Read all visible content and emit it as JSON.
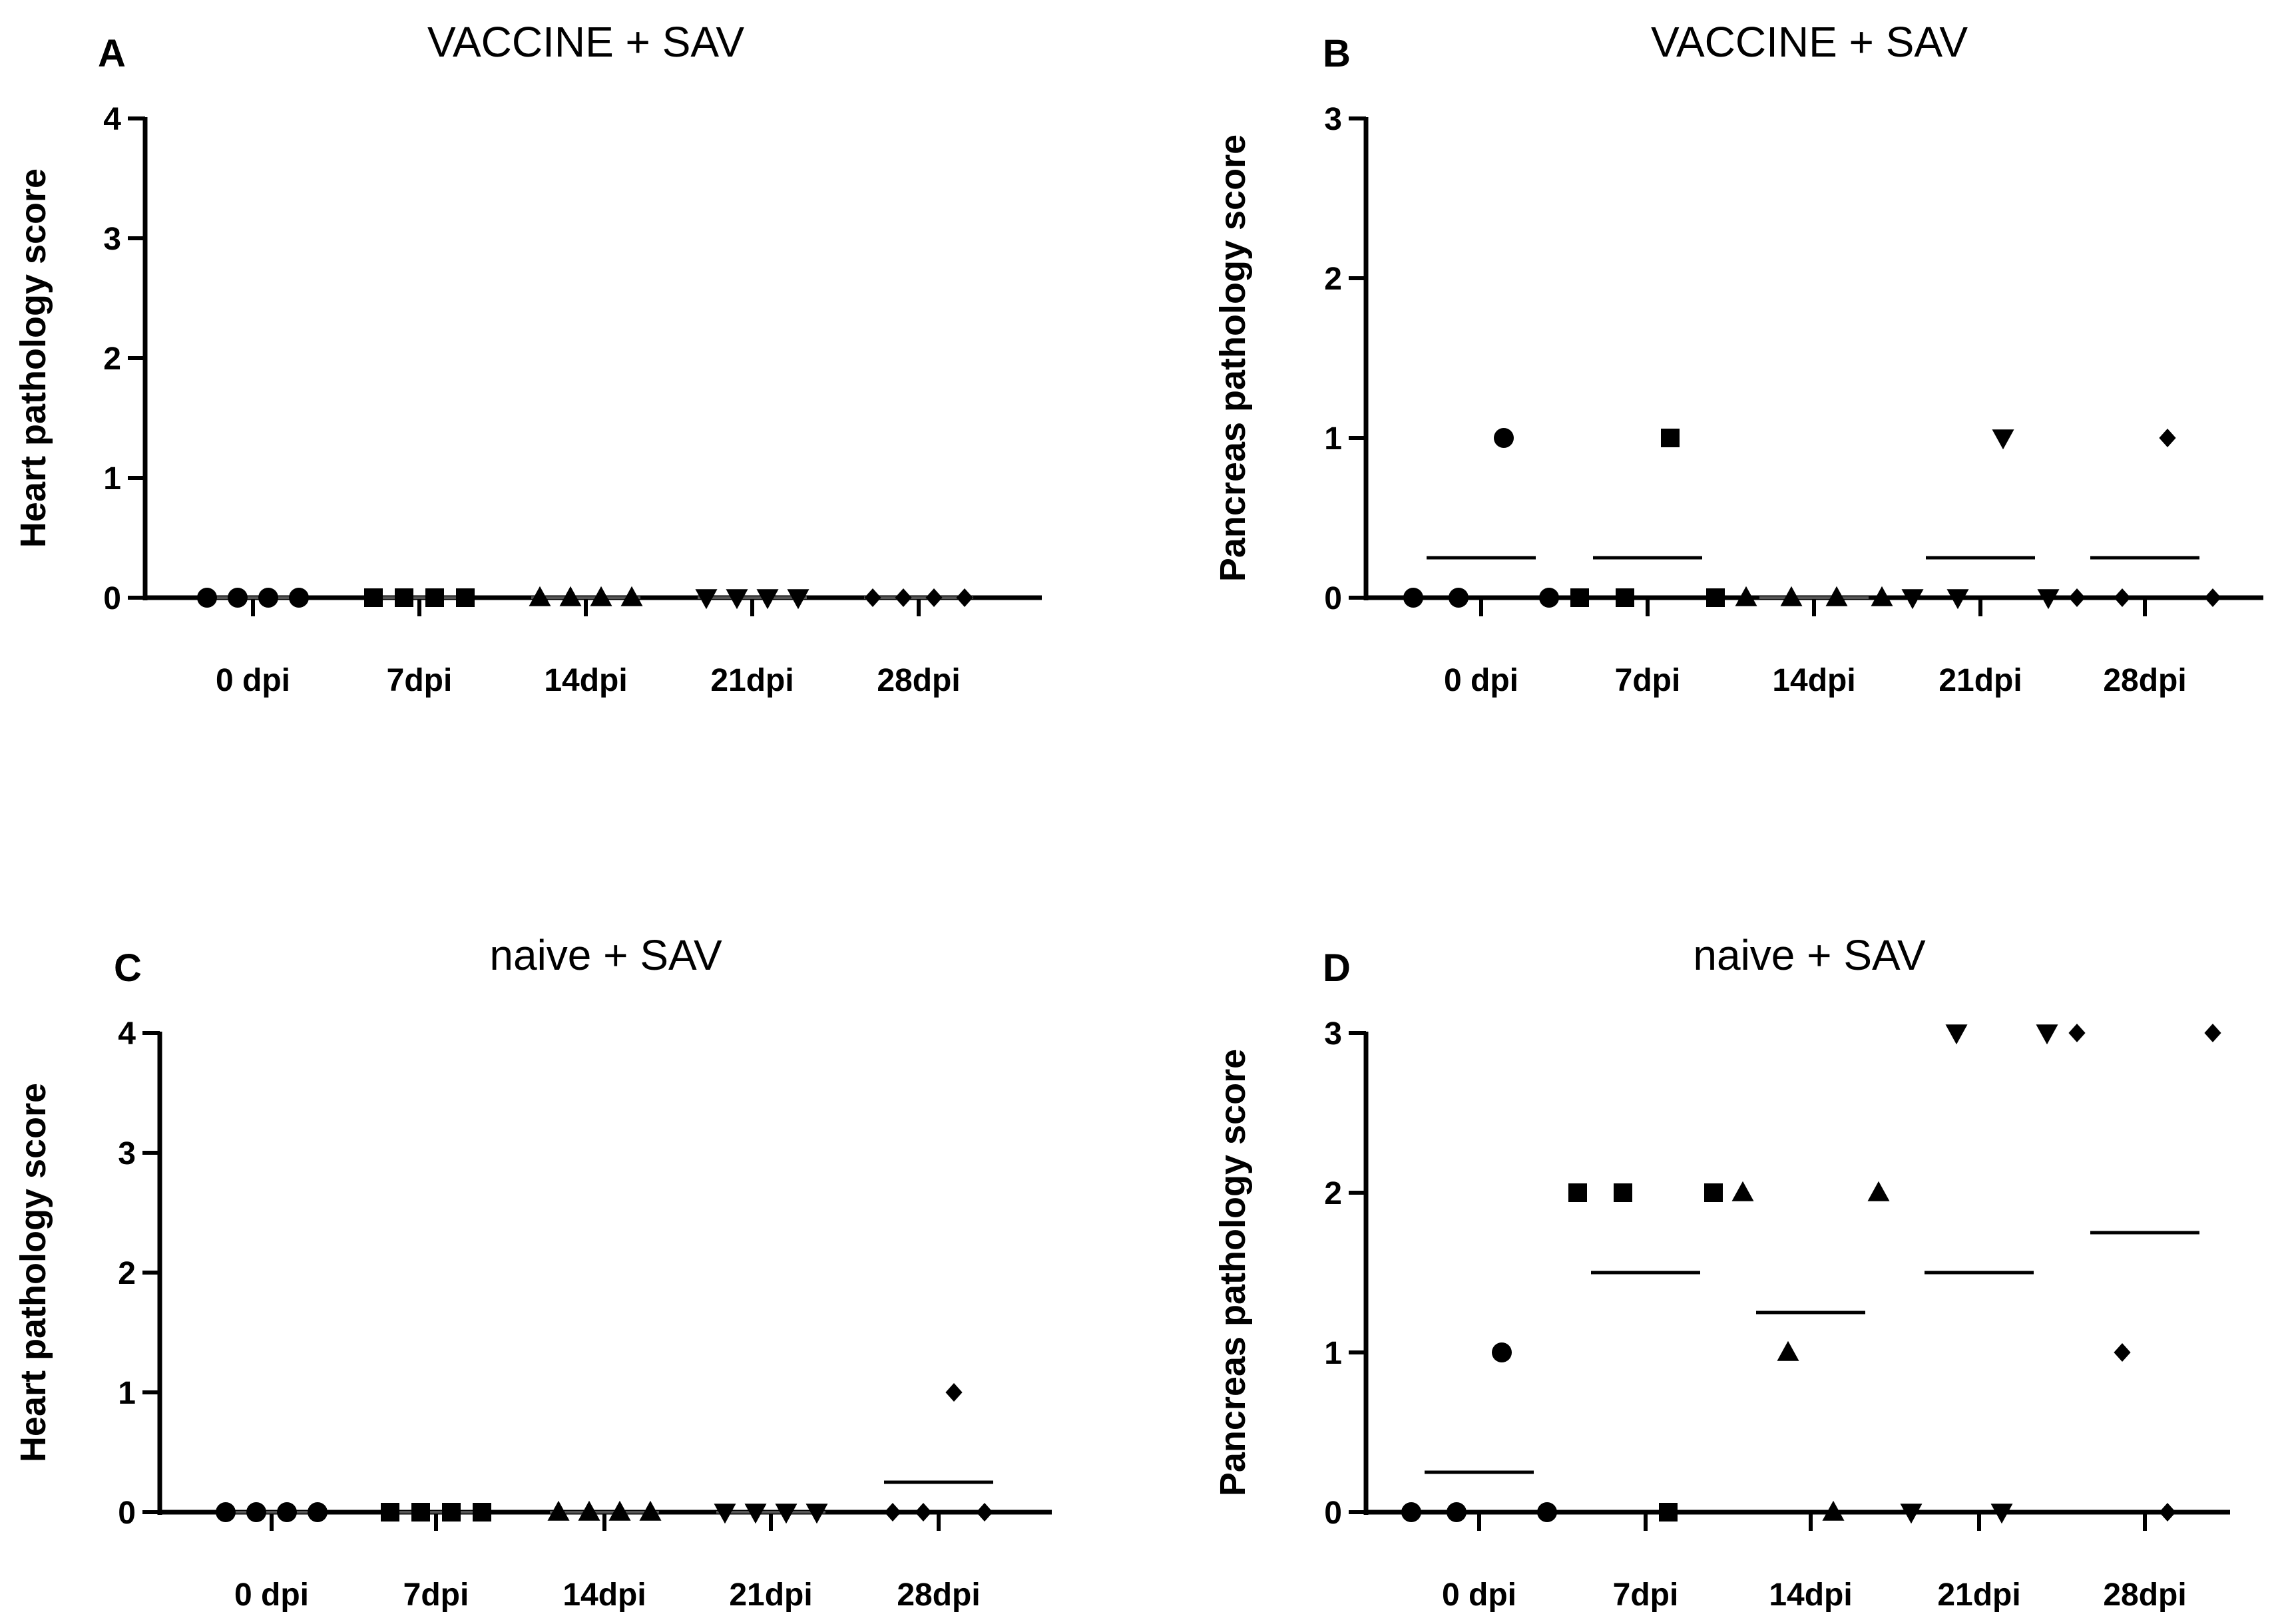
{
  "chart_data": [
    {
      "panel": "A",
      "title": "VACCINE + SAV",
      "type": "scatter",
      "ylabel": "Heart pathology score",
      "xlabel": "",
      "ylim": [
        0,
        4
      ],
      "yticks": [
        0,
        1,
        2,
        3,
        4
      ],
      "categories": [
        "0 dpi",
        "7dpi",
        "14dpi",
        "21dpi",
        "28dpi"
      ],
      "markers": [
        "circle",
        "square",
        "triangle-up",
        "triangle-down",
        "diamond"
      ],
      "groups": [
        {
          "label": "0 dpi",
          "values": [
            0,
            0,
            0,
            0
          ],
          "mean": 0
        },
        {
          "label": "7dpi",
          "values": [
            0,
            0,
            0,
            0
          ],
          "mean": 0
        },
        {
          "label": "14dpi",
          "values": [
            0,
            0,
            0,
            0
          ],
          "mean": 0
        },
        {
          "label": "21dpi",
          "values": [
            0,
            0,
            0,
            0
          ],
          "mean": 0
        },
        {
          "label": "28dpi",
          "values": [
            0,
            0,
            0,
            0
          ],
          "mean": 0
        }
      ]
    },
    {
      "panel": "B",
      "title": "VACCINE + SAV",
      "type": "scatter",
      "ylabel": "Pancreas pathology score",
      "xlabel": "",
      "ylim": [
        0,
        3
      ],
      "yticks": [
        0,
        1,
        2,
        3
      ],
      "categories": [
        "0 dpi",
        "7dpi",
        "14dpi",
        "21dpi",
        "28dpi"
      ],
      "markers": [
        "circle",
        "square",
        "triangle-up",
        "triangle-down",
        "diamond"
      ],
      "groups": [
        {
          "label": "0 dpi",
          "values": [
            0,
            0,
            1,
            0
          ],
          "mean": 0.25
        },
        {
          "label": "7dpi",
          "values": [
            0,
            0,
            1,
            0
          ],
          "mean": 0.25
        },
        {
          "label": "14dpi",
          "values": [
            0,
            0,
            0,
            0
          ],
          "mean": 0
        },
        {
          "label": "21dpi",
          "values": [
            0,
            0,
            1,
            0
          ],
          "mean": 0.25
        },
        {
          "label": "28dpi",
          "values": [
            0,
            0,
            1,
            0
          ],
          "mean": 0.25
        }
      ]
    },
    {
      "panel": "C",
      "title": "naive + SAV",
      "type": "scatter",
      "ylabel": "Heart pathology score",
      "xlabel": "",
      "ylim": [
        0,
        4
      ],
      "yticks": [
        0,
        1,
        2,
        3,
        4
      ],
      "categories": [
        "0 dpi",
        "7dpi",
        "14dpi",
        "21dpi",
        "28dpi"
      ],
      "markers": [
        "circle",
        "square",
        "triangle-up",
        "triangle-down",
        "diamond"
      ],
      "groups": [
        {
          "label": "0 dpi",
          "values": [
            0,
            0,
            0,
            0
          ],
          "mean": 0
        },
        {
          "label": "7dpi",
          "values": [
            0,
            0,
            0,
            0
          ],
          "mean": 0
        },
        {
          "label": "14dpi",
          "values": [
            0,
            0,
            0,
            0
          ],
          "mean": 0
        },
        {
          "label": "21dpi",
          "values": [
            0,
            0,
            0,
            0
          ],
          "mean": 0
        },
        {
          "label": "28dpi",
          "values": [
            0,
            0,
            1,
            0
          ],
          "mean": 0.25
        }
      ]
    },
    {
      "panel": "D",
      "title": "naive + SAV",
      "type": "scatter",
      "ylabel": "Pancreas pathology score",
      "xlabel": "",
      "ylim": [
        0,
        3
      ],
      "yticks": [
        0,
        1,
        2,
        3
      ],
      "categories": [
        "0 dpi",
        "7dpi",
        "14dpi",
        "21dpi",
        "28dpi"
      ],
      "markers": [
        "circle",
        "square",
        "triangle-up",
        "triangle-down",
        "diamond"
      ],
      "groups": [
        {
          "label": "0 dpi",
          "values": [
            0,
            0,
            1,
            0
          ],
          "mean": 0.25
        },
        {
          "label": "7dpi",
          "values": [
            2,
            2,
            0,
            2
          ],
          "mean": 1.5
        },
        {
          "label": "14dpi",
          "values": [
            2,
            1,
            0,
            2
          ],
          "mean": 1.25
        },
        {
          "label": "21dpi",
          "values": [
            0,
            3,
            0,
            3
          ],
          "mean": 1.5
        },
        {
          "label": "28dpi",
          "values": [
            3,
            1,
            0,
            3
          ],
          "mean": 1.75
        }
      ]
    }
  ]
}
